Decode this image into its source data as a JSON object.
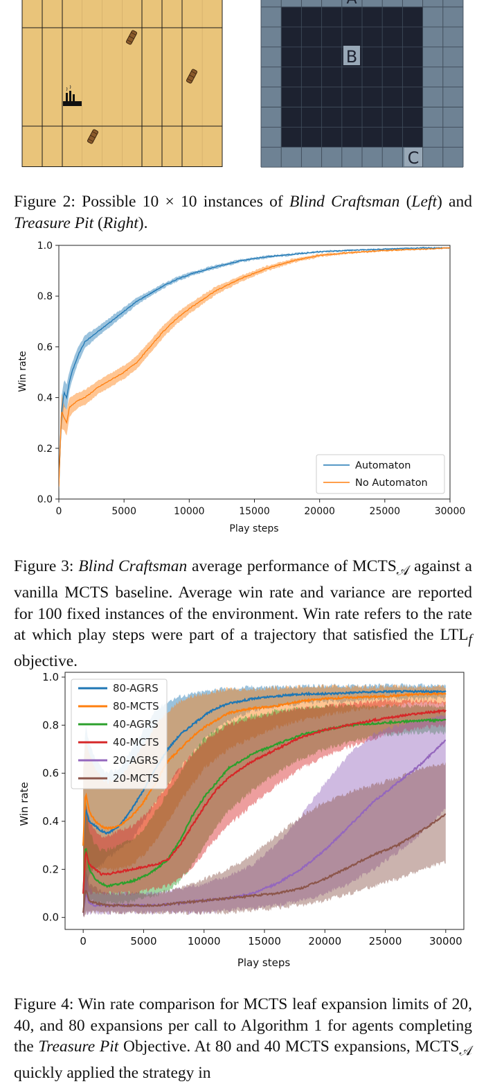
{
  "figure2": {
    "left_panel_name": "Blind Craftsman",
    "right_panel_name": "Treasure Pit",
    "right_labels": [
      "A",
      "B",
      "C"
    ],
    "caption": {
      "prefix": "Figure 2: Possible 10 × 10 instances of ",
      "env1": "Blind Craftsman",
      "mid1": " (",
      "left": "Left",
      "mid2": ") and ",
      "env2": "Treasure Pit",
      "mid3": " (",
      "right": "Right",
      "end": ")."
    }
  },
  "figure3": {
    "caption": {
      "prefix": "Figure 3: ",
      "env": "Blind Craftsman",
      "rest": " average performance of MCTS",
      "sub": "𝒜",
      "body": " against a vanilla MCTS baseline. Average win rate and variance are reported for 100 fixed instances of the environment. Win rate refers to the rate at which play steps were part of a trajectory that satisfied the LTL",
      "sub2": "f",
      "end": " objective."
    }
  },
  "figure4": {
    "caption": {
      "line1": "Figure 4: Win rate comparison for MCTS leaf expansion limits of 20, 40, and 80 expansions per call to Algorithm 1 for agents completing the ",
      "env": "Treasure Pit",
      "line2": " Objective. At 80 and 40 MCTS expansions, MCTS",
      "sub": "𝒜",
      "line3": " quickly applied the strategy in"
    }
  },
  "chart_data": [
    {
      "type": "line",
      "title": "",
      "xlabel": "Play steps",
      "ylabel": "Win rate",
      "xlim": [
        0,
        30000
      ],
      "ylim": [
        0.0,
        1.0
      ],
      "xticks": [
        0,
        5000,
        10000,
        15000,
        20000,
        25000,
        30000
      ],
      "yticks": [
        0.0,
        0.2,
        0.4,
        0.6,
        0.8,
        1.0
      ],
      "legend_position": "lower-right",
      "series": [
        {
          "name": "Automaton",
          "color": "#1f77b4",
          "x": [
            0,
            200,
            400,
            600,
            800,
            1000,
            1500,
            2000,
            2500,
            3000,
            4000,
            5000,
            6000,
            7000,
            8000,
            9000,
            10000,
            12000,
            14000,
            16000,
            18000,
            20000,
            22000,
            25000,
            28000,
            30000
          ],
          "y": [
            0.05,
            0.34,
            0.42,
            0.4,
            0.46,
            0.5,
            0.57,
            0.62,
            0.64,
            0.66,
            0.7,
            0.74,
            0.78,
            0.81,
            0.84,
            0.865,
            0.885,
            0.915,
            0.94,
            0.955,
            0.965,
            0.975,
            0.98,
            0.985,
            0.99,
            0.99
          ],
          "band": [
            0.02,
            0.06,
            0.05,
            0.05,
            0.04,
            0.035,
            0.03,
            0.025,
            0.022,
            0.02,
            0.018,
            0.016,
            0.014,
            0.012,
            0.01,
            0.009,
            0.008,
            0.007,
            0.006,
            0.005,
            0.004,
            0.003,
            0.003,
            0.002,
            0.002,
            0.002
          ]
        },
        {
          "name": "No Automaton",
          "color": "#ff7f0e",
          "x": [
            0,
            200,
            400,
            600,
            800,
            1000,
            1500,
            2000,
            2500,
            3000,
            4000,
            5000,
            6000,
            7000,
            8000,
            9000,
            10000,
            12000,
            14000,
            16000,
            18000,
            20000,
            22000,
            25000,
            28000,
            30000
          ],
          "y": [
            0.05,
            0.35,
            0.32,
            0.3,
            0.36,
            0.37,
            0.39,
            0.4,
            0.42,
            0.44,
            0.47,
            0.5,
            0.54,
            0.6,
            0.66,
            0.71,
            0.75,
            0.82,
            0.87,
            0.91,
            0.94,
            0.96,
            0.97,
            0.98,
            0.985,
            0.99
          ],
          "band": [
            0.02,
            0.07,
            0.05,
            0.05,
            0.04,
            0.035,
            0.03,
            0.03,
            0.028,
            0.027,
            0.026,
            0.026,
            0.026,
            0.025,
            0.024,
            0.022,
            0.02,
            0.016,
            0.012,
            0.01,
            0.008,
            0.006,
            0.004,
            0.003,
            0.002,
            0.002
          ]
        }
      ]
    },
    {
      "type": "line",
      "title": "",
      "xlabel": "Play steps",
      "ylabel": "Win rate",
      "xlim": [
        -1500,
        31500
      ],
      "ylim": [
        -0.05,
        1.02
      ],
      "xticks": [
        0,
        5000,
        10000,
        15000,
        20000,
        25000,
        30000
      ],
      "yticks": [
        0.0,
        0.2,
        0.4,
        0.6,
        0.8,
        1.0
      ],
      "legend_position": "top-left",
      "series": [
        {
          "name": "80-AGRS",
          "color": "#1f77b4",
          "x": [
            0,
            200,
            500,
            1000,
            1500,
            2000,
            3000,
            4000,
            5000,
            6000,
            7000,
            8000,
            9000,
            10000,
            11000,
            12000,
            14000,
            16000,
            18000,
            20000,
            22000,
            25000,
            28000,
            30000
          ],
          "y": [
            0.3,
            0.45,
            0.4,
            0.38,
            0.36,
            0.35,
            0.38,
            0.45,
            0.53,
            0.62,
            0.7,
            0.76,
            0.8,
            0.84,
            0.87,
            0.89,
            0.91,
            0.92,
            0.93,
            0.93,
            0.935,
            0.94,
            0.94,
            0.94
          ],
          "band_low": [
            0.0,
            0.1,
            0.18,
            0.2,
            0.22,
            0.25,
            0.28,
            0.32,
            0.4,
            0.48,
            0.55,
            0.62,
            0.68,
            0.74,
            0.78,
            0.82,
            0.86,
            0.88,
            0.89,
            0.9,
            0.9,
            0.91,
            0.91,
            0.91
          ],
          "band_high": [
            0.6,
            0.8,
            0.72,
            0.66,
            0.62,
            0.6,
            0.62,
            0.7,
            0.78,
            0.86,
            0.9,
            0.92,
            0.93,
            0.94,
            0.95,
            0.95,
            0.96,
            0.96,
            0.96,
            0.965,
            0.965,
            0.965,
            0.965,
            0.965
          ]
        },
        {
          "name": "80-MCTS",
          "color": "#ff7f0e",
          "x": [
            0,
            200,
            500,
            1000,
            1500,
            2000,
            3000,
            4000,
            5000,
            6000,
            7000,
            8000,
            9000,
            10000,
            11000,
            12000,
            14000,
            16000,
            18000,
            20000,
            22000,
            25000,
            28000,
            30000
          ],
          "y": [
            0.3,
            0.52,
            0.44,
            0.4,
            0.38,
            0.37,
            0.38,
            0.42,
            0.48,
            0.56,
            0.65,
            0.7,
            0.75,
            0.79,
            0.82,
            0.85,
            0.87,
            0.88,
            0.9,
            0.91,
            0.915,
            0.92,
            0.93,
            0.93
          ],
          "band_low": [
            0.0,
            0.2,
            0.2,
            0.2,
            0.2,
            0.2,
            0.2,
            0.22,
            0.26,
            0.32,
            0.4,
            0.48,
            0.55,
            0.62,
            0.66,
            0.7,
            0.75,
            0.79,
            0.82,
            0.84,
            0.86,
            0.88,
            0.89,
            0.89
          ],
          "band_high": [
            0.62,
            0.74,
            0.68,
            0.62,
            0.58,
            0.56,
            0.58,
            0.64,
            0.72,
            0.8,
            0.86,
            0.9,
            0.92,
            0.93,
            0.94,
            0.95,
            0.95,
            0.955,
            0.96,
            0.96,
            0.96,
            0.96,
            0.96,
            0.96
          ]
        },
        {
          "name": "40-AGRS",
          "color": "#2ca02c",
          "x": [
            0,
            200,
            500,
            1000,
            1500,
            2000,
            3000,
            4000,
            5000,
            6000,
            7000,
            8000,
            9000,
            10000,
            11000,
            12000,
            14000,
            16000,
            18000,
            20000,
            22000,
            25000,
            28000,
            30000
          ],
          "y": [
            0.1,
            0.3,
            0.2,
            0.16,
            0.14,
            0.13,
            0.14,
            0.15,
            0.17,
            0.2,
            0.24,
            0.32,
            0.42,
            0.5,
            0.56,
            0.62,
            0.68,
            0.72,
            0.76,
            0.78,
            0.8,
            0.81,
            0.82,
            0.82
          ],
          "band_low": [
            0.0,
            0.1,
            0.08,
            0.06,
            0.06,
            0.06,
            0.06,
            0.07,
            0.08,
            0.09,
            0.11,
            0.15,
            0.22,
            0.3,
            0.38,
            0.44,
            0.53,
            0.6,
            0.66,
            0.7,
            0.73,
            0.76,
            0.77,
            0.77
          ],
          "band_high": [
            0.3,
            0.5,
            0.36,
            0.3,
            0.28,
            0.28,
            0.3,
            0.32,
            0.36,
            0.44,
            0.52,
            0.6,
            0.68,
            0.74,
            0.78,
            0.81,
            0.84,
            0.86,
            0.87,
            0.88,
            0.88,
            0.88,
            0.88,
            0.88
          ]
        },
        {
          "name": "40-MCTS",
          "color": "#d62728",
          "x": [
            0,
            200,
            500,
            1000,
            1500,
            2000,
            3000,
            4000,
            5000,
            6000,
            7000,
            8000,
            9000,
            10000,
            11000,
            12000,
            14000,
            16000,
            18000,
            20000,
            22000,
            25000,
            28000,
            30000
          ],
          "y": [
            0.1,
            0.28,
            0.22,
            0.2,
            0.18,
            0.18,
            0.19,
            0.2,
            0.21,
            0.22,
            0.24,
            0.3,
            0.38,
            0.46,
            0.53,
            0.58,
            0.65,
            0.7,
            0.75,
            0.78,
            0.8,
            0.83,
            0.85,
            0.86
          ],
          "band_low": [
            0.0,
            0.1,
            0.1,
            0.1,
            0.1,
            0.1,
            0.1,
            0.1,
            0.11,
            0.12,
            0.13,
            0.16,
            0.21,
            0.27,
            0.33,
            0.38,
            0.47,
            0.55,
            0.62,
            0.67,
            0.71,
            0.76,
            0.79,
            0.8
          ],
          "band_high": [
            0.3,
            0.48,
            0.4,
            0.36,
            0.34,
            0.34,
            0.36,
            0.38,
            0.42,
            0.48,
            0.55,
            0.62,
            0.68,
            0.73,
            0.77,
            0.8,
            0.83,
            0.85,
            0.87,
            0.88,
            0.89,
            0.9,
            0.9,
            0.9
          ]
        },
        {
          "name": "20-AGRS",
          "color": "#9467bd",
          "x": [
            0,
            200,
            500,
            1000,
            2000,
            3000,
            4000,
            6000,
            8000,
            10000,
            12000,
            14000,
            16000,
            18000,
            20000,
            22000,
            24000,
            26000,
            28000,
            30000
          ],
          "y": [
            0.02,
            0.1,
            0.06,
            0.05,
            0.05,
            0.05,
            0.05,
            0.05,
            0.06,
            0.07,
            0.08,
            0.1,
            0.14,
            0.2,
            0.28,
            0.38,
            0.48,
            0.56,
            0.64,
            0.74
          ],
          "band_low": [
            0.0,
            0.02,
            0.02,
            0.02,
            0.02,
            0.02,
            0.02,
            0.02,
            0.02,
            0.02,
            0.03,
            0.04,
            0.05,
            0.07,
            0.1,
            0.14,
            0.2,
            0.27,
            0.35,
            0.45
          ],
          "band_high": [
            0.06,
            0.18,
            0.12,
            0.1,
            0.1,
            0.1,
            0.1,
            0.1,
            0.12,
            0.14,
            0.17,
            0.22,
            0.3,
            0.42,
            0.56,
            0.68,
            0.76,
            0.8,
            0.82,
            0.84
          ]
        },
        {
          "name": "20-MCTS",
          "color": "#8c564b",
          "x": [
            0,
            200,
            500,
            1000,
            2000,
            3000,
            4000,
            6000,
            8000,
            10000,
            12000,
            14000,
            16000,
            18000,
            20000,
            22000,
            24000,
            26000,
            28000,
            30000
          ],
          "y": [
            0.02,
            0.12,
            0.07,
            0.06,
            0.05,
            0.05,
            0.05,
            0.05,
            0.06,
            0.07,
            0.08,
            0.09,
            0.1,
            0.12,
            0.16,
            0.21,
            0.26,
            0.3,
            0.36,
            0.43
          ],
          "band_low": [
            0.0,
            0.02,
            0.02,
            0.02,
            0.02,
            0.02,
            0.02,
            0.02,
            0.02,
            0.02,
            0.02,
            0.03,
            0.04,
            0.05,
            0.07,
            0.1,
            0.13,
            0.16,
            0.2,
            0.23
          ],
          "band_high": [
            0.06,
            0.2,
            0.14,
            0.12,
            0.1,
            0.1,
            0.1,
            0.1,
            0.12,
            0.16,
            0.2,
            0.26,
            0.34,
            0.42,
            0.48,
            0.52,
            0.55,
            0.58,
            0.62,
            0.64
          ]
        }
      ]
    }
  ]
}
